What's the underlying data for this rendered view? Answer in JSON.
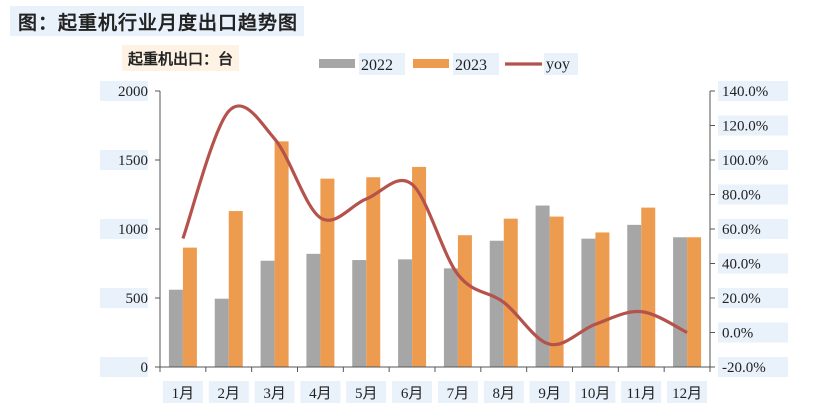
{
  "title": "图：起重机行业月度出口趋势图",
  "unit_label": "起重机出口：台",
  "colors": {
    "s2022": "#a6a6a6",
    "s2023": "#ed9b4f",
    "yoy": "#b5524c"
  },
  "chart_data": {
    "type": "bar",
    "categories": [
      "1月",
      "2月",
      "3月",
      "4月",
      "5月",
      "6月",
      "7月",
      "8月",
      "9月",
      "10月",
      "11月",
      "12月"
    ],
    "series": [
      {
        "name": "2022",
        "type": "bar",
        "axis": "left",
        "values": [
          560,
          495,
          770,
          820,
          775,
          780,
          715,
          915,
          1170,
          930,
          1030,
          940
        ]
      },
      {
        "name": "2023",
        "type": "bar",
        "axis": "left",
        "values": [
          865,
          1130,
          1635,
          1365,
          1375,
          1450,
          955,
          1075,
          1090,
          975,
          1155,
          940
        ]
      },
      {
        "name": "yoy",
        "type": "line",
        "axis": "right",
        "values": [
          54.5,
          128.3,
          112.3,
          66.5,
          77.4,
          85.9,
          33.6,
          17.5,
          -6.8,
          4.8,
          12.1,
          0.0
        ]
      }
    ],
    "ylim": [
      0,
      2000
    ],
    "yticks": [
      "0",
      "500",
      "1000",
      "1500",
      "2000"
    ],
    "y2lim": [
      -20,
      140
    ],
    "y2ticks": [
      "-20.0%",
      "0.0%",
      "20.0%",
      "40.0%",
      "60.0%",
      "80.0%",
      "100.0%",
      "120.0%",
      "140.0%"
    ],
    "legend_position": "top-center",
    "grid": false
  }
}
